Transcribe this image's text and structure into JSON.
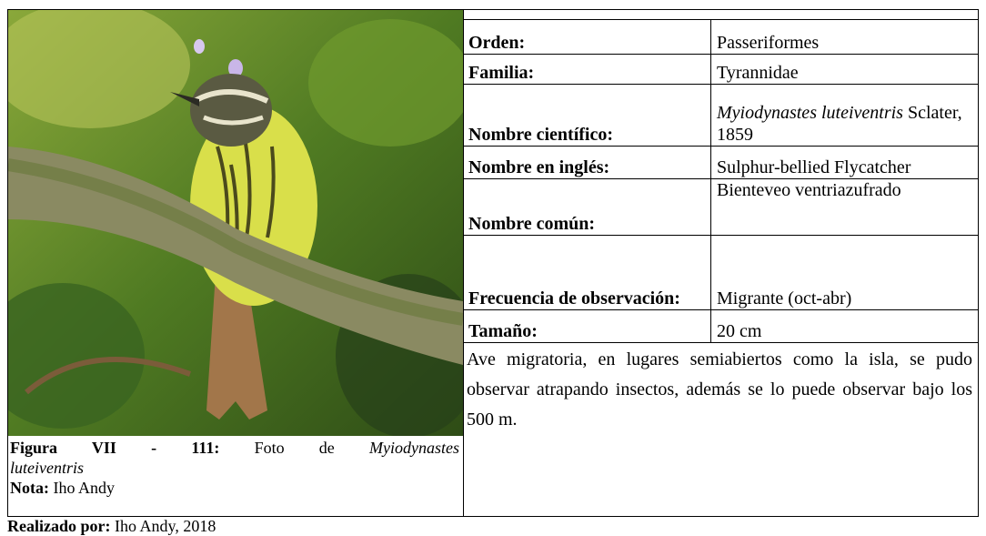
{
  "caption": {
    "label": "Figura VII - 111:",
    "text": "Foto de",
    "species_1": "Myiodynastes",
    "species_2": "luteiventris"
  },
  "note": {
    "label": "Nota:",
    "text": "Iho Andy"
  },
  "rows": [
    {
      "label": "Orden:",
      "value": "Passeriformes"
    },
    {
      "label": "Familia:",
      "value": "Tyrannidae"
    },
    {
      "label": "Nombre científico:",
      "value_italic": "Myiodynastes luteiventris",
      "value_rest": "Sclater, 1859"
    },
    {
      "label": "Nombre en inglés:",
      "value": "Sulphur-bellied Flycatcher"
    },
    {
      "label": "Nombre común:",
      "value": "Bienteveo ventriazufrado"
    },
    {
      "label": "Frecuencia de observación:",
      "value": "Migrante (oct-abr)"
    },
    {
      "label": "Tamaño:",
      "value": "20 cm"
    }
  ],
  "description": "Ave migratoria, en lugares semiabiertos como la isla, se pudo observar atrapando insectos, además se lo puede observar bajo los 500 m.",
  "footer": {
    "label": "Realizado por:",
    "text": "Iho Andy, 2018"
  }
}
